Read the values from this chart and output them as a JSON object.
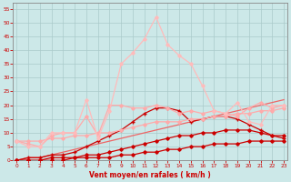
{
  "xlabel": "Vent moyen/en rafales ( km/h )",
  "x": [
    0,
    1,
    2,
    3,
    4,
    5,
    6,
    7,
    8,
    9,
    10,
    11,
    12,
    13,
    14,
    15,
    16,
    17,
    18,
    19,
    20,
    21,
    22,
    23
  ],
  "series": [
    {
      "name": "darkred_lowest",
      "color": "#cc0000",
      "linewidth": 0.9,
      "marker": "D",
      "markersize": 1.8,
      "values": [
        0,
        0,
        0,
        0,
        0,
        1,
        1,
        1,
        1,
        2,
        2,
        3,
        3,
        4,
        4,
        5,
        5,
        6,
        6,
        6,
        7,
        7,
        7,
        7
      ]
    },
    {
      "name": "darkred_low",
      "color": "#cc0000",
      "linewidth": 0.9,
      "marker": "D",
      "markersize": 1.8,
      "values": [
        0,
        0,
        0,
        1,
        1,
        1,
        2,
        2,
        3,
        4,
        5,
        6,
        7,
        8,
        9,
        9,
        10,
        10,
        11,
        11,
        11,
        10,
        9,
        9
      ]
    },
    {
      "name": "darkred_mid",
      "color": "#cc0000",
      "linewidth": 0.9,
      "marker": "+",
      "markersize": 3.0,
      "values": [
        0,
        1,
        1,
        2,
        2,
        3,
        5,
        7,
        9,
        11,
        14,
        17,
        19,
        19,
        18,
        14,
        15,
        16,
        16,
        15,
        13,
        11,
        9,
        8
      ]
    },
    {
      "name": "medium_red_diagonal",
      "color": "#ee6666",
      "linewidth": 0.9,
      "marker": null,
      "markersize": 0,
      "values": [
        0,
        1,
        1,
        2,
        3,
        4,
        5,
        6,
        7,
        8,
        9,
        10,
        11,
        12,
        13,
        14,
        15,
        16,
        17,
        18,
        19,
        20,
        21,
        22
      ]
    },
    {
      "name": "light_pink_lower",
      "color": "#ffaaaa",
      "linewidth": 0.9,
      "marker": "D",
      "markersize": 1.8,
      "values": [
        7,
        7,
        7,
        8,
        8,
        9,
        9,
        10,
        10,
        11,
        12,
        13,
        14,
        14,
        14,
        15,
        15,
        16,
        16,
        17,
        17,
        18,
        18,
        19
      ]
    },
    {
      "name": "light_pink_upper",
      "color": "#ffaaaa",
      "linewidth": 0.9,
      "marker": "D",
      "markersize": 1.8,
      "values": [
        7,
        6,
        5,
        9,
        10,
        10,
        16,
        9,
        20,
        20,
        19,
        19,
        20,
        19,
        17,
        18,
        17,
        18,
        17,
        16,
        19,
        21,
        19,
        20
      ]
    },
    {
      "name": "light_pink_peak",
      "color": "#ffbbbb",
      "linewidth": 0.9,
      "marker": "D",
      "markersize": 1.8,
      "values": [
        7,
        5,
        5,
        10,
        10,
        10,
        22,
        8,
        18,
        35,
        39,
        44,
        52,
        42,
        38,
        35,
        27,
        18,
        17,
        21,
        14,
        13,
        20,
        20
      ]
    }
  ],
  "ylim": [
    0,
    57
  ],
  "yticks": [
    0,
    5,
    10,
    15,
    20,
    25,
    30,
    35,
    40,
    45,
    50,
    55
  ],
  "xticks": [
    0,
    1,
    2,
    3,
    4,
    5,
    6,
    7,
    8,
    9,
    10,
    11,
    12,
    13,
    14,
    15,
    16,
    17,
    18,
    19,
    20,
    21,
    22,
    23
  ],
  "background_color": "#cce8e8",
  "grid_color": "#aacaca",
  "tick_color": "#cc0000",
  "label_color": "#cc0000",
  "axis_color": "#cc0000",
  "spine_color": "#888888"
}
